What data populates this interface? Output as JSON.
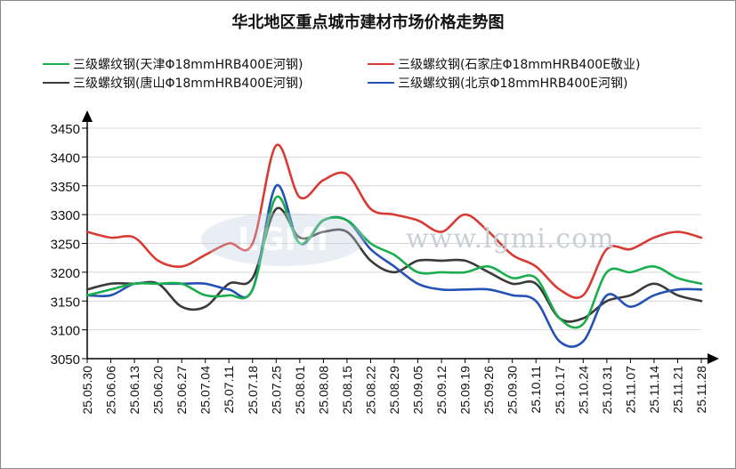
{
  "chart_data": {
    "type": "line",
    "title": "华北地区重点城市建材市场价格走势图",
    "categories": [
      "25.05.30",
      "25.06.06",
      "25.06.13",
      "25.06.20",
      "25.06.27",
      "25.07.04",
      "25.07.11",
      "25.07.18",
      "25.07.25",
      "25.08.01",
      "25.08.08",
      "25.08.15",
      "25.08.22",
      "25.08.29",
      "25.09.05",
      "25.09.12",
      "25.09.19",
      "25.09.26",
      "25.09.30",
      "25.10.11",
      "25.10.17",
      "25.10.24",
      "25.10.31",
      "25.11.07",
      "25.11.14",
      "25.11.21",
      "25.11.28"
    ],
    "ylim": [
      3050,
      3450
    ],
    "yticks": [
      3050,
      3100,
      3150,
      3200,
      3250,
      3300,
      3350,
      3400,
      3450
    ],
    "grid": true,
    "legend_position": "top",
    "series": [
      {
        "name": "三级螺纹钢(天津Φ18mmHRB400E河钢)",
        "color": "#1aae4e",
        "values": [
          3160,
          3170,
          3180,
          3180,
          3180,
          3160,
          3160,
          3170,
          3330,
          3250,
          3290,
          3290,
          3250,
          3230,
          3200,
          3200,
          3200,
          3210,
          3190,
          3190,
          3120,
          3110,
          3200,
          3200,
          3210,
          3190,
          3180
        ]
      },
      {
        "name": "三级螺纹钢(石家庄Φ18mmHRB400E敬业)",
        "color": "#d83a34",
        "values": [
          3270,
          3260,
          3260,
          3220,
          3210,
          3230,
          3250,
          3250,
          3420,
          3330,
          3360,
          3370,
          3310,
          3300,
          3290,
          3270,
          3300,
          3270,
          3230,
          3210,
          3170,
          3160,
          3240,
          3240,
          3260,
          3270,
          3260
        ]
      },
      {
        "name": "三级螺纹钢(唐山Φ18mmHRB400E河钢)",
        "color": "#3a3a3a",
        "values": [
          3170,
          3180,
          3180,
          3180,
          3140,
          3140,
          3180,
          3190,
          3310,
          3260,
          3270,
          3270,
          3220,
          3200,
          3220,
          3220,
          3220,
          3200,
          3180,
          3180,
          3120,
          3120,
          3150,
          3160,
          3180,
          3160,
          3150
        ]
      },
      {
        "name": "三级螺纹钢(北京Φ18mmHRB400E河钢)",
        "color": "#2452b4",
        "values": [
          3160,
          3160,
          3180,
          3180,
          3180,
          3180,
          3170,
          3170,
          3350,
          3250,
          3290,
          3290,
          3240,
          3210,
          3180,
          3170,
          3170,
          3170,
          3160,
          3150,
          3080,
          3080,
          3160,
          3140,
          3160,
          3170,
          3170
        ]
      }
    ]
  },
  "watermark": {
    "logo_text": "LGMI",
    "url_text": "www.lgmi.com"
  }
}
